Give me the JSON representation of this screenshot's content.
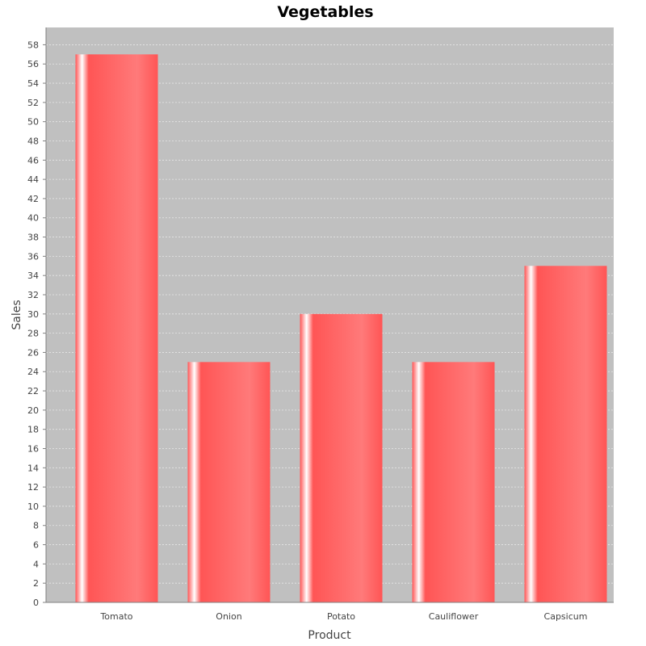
{
  "chart_data": {
    "type": "bar",
    "title": "Vegetables",
    "xlabel": "Product",
    "ylabel": "Sales",
    "categories": [
      "Tomato",
      "Onion",
      "Potato",
      "Cauliflower",
      "Capsicum"
    ],
    "values": [
      57,
      25,
      30,
      25,
      35
    ],
    "ylim": [
      0,
      59.8
    ],
    "yticks": [
      0,
      2,
      4,
      6,
      8,
      10,
      12,
      14,
      16,
      18,
      20,
      22,
      24,
      26,
      28,
      30,
      32,
      34,
      36,
      38,
      40,
      42,
      44,
      46,
      48,
      50,
      52,
      54,
      56,
      58
    ],
    "grid": true,
    "legend": "none",
    "colors": {
      "bar": "#ff5555",
      "bar_highlight": "#ffffff",
      "plot_background": "#c0c0c0",
      "gridline": "#e6e6e6"
    }
  }
}
